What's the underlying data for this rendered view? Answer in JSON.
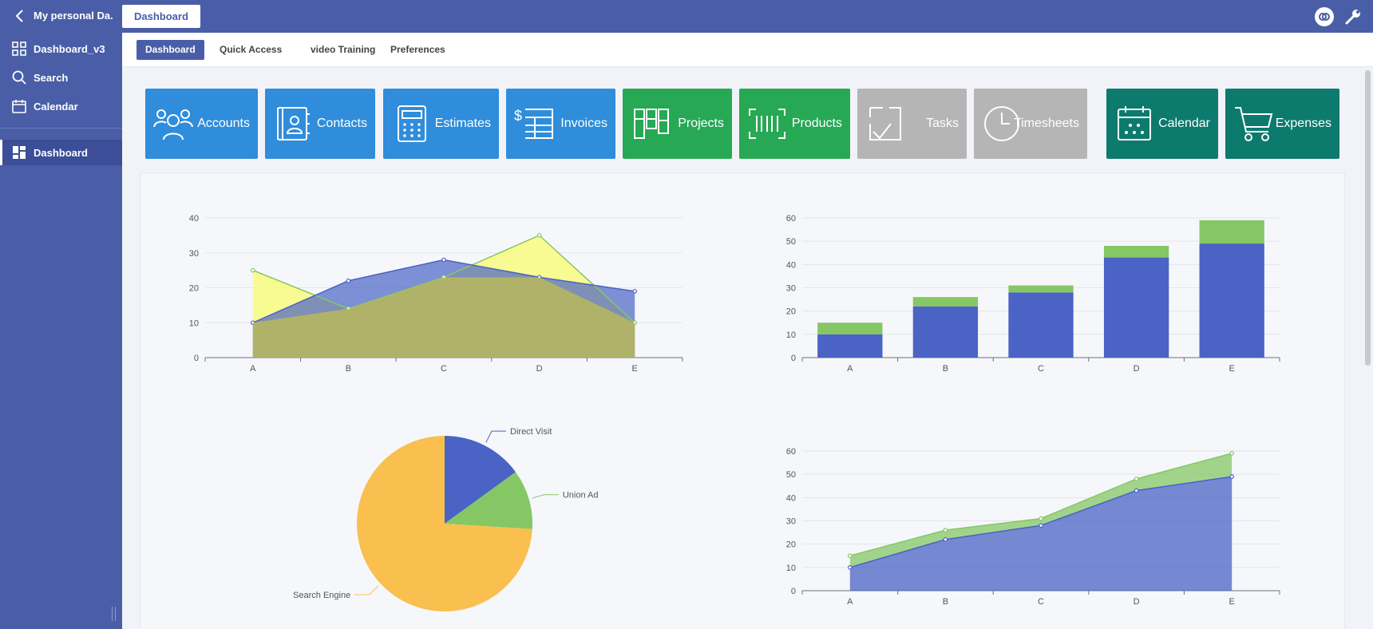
{
  "header": {
    "title": "My personal Da...",
    "active_tab": "Dashboard"
  },
  "sidebar": {
    "items": [
      {
        "label": "Dashboard_v3",
        "icon": "grid-icon"
      },
      {
        "label": "Search",
        "icon": "search-icon"
      },
      {
        "label": "Calendar",
        "icon": "calendar-icon"
      },
      {
        "label": "Dashboard",
        "icon": "dashboard-icon",
        "active": true
      }
    ]
  },
  "subnav": {
    "tabs": [
      "Dashboard",
      "Quick Access",
      "video Training",
      "Preferences"
    ],
    "active": "Dashboard"
  },
  "tiles": [
    {
      "label": "Accounts",
      "icon": "users-icon",
      "color": "#2f8ddb"
    },
    {
      "label": "Contacts",
      "icon": "contact-book-icon",
      "color": "#2f8ddb"
    },
    {
      "label": "Estimates",
      "icon": "calculator-icon",
      "color": "#2f8ddb"
    },
    {
      "label": "Invoices",
      "icon": "invoice-icon",
      "color": "#2f8ddb"
    },
    {
      "label": "Projects",
      "icon": "kanban-icon",
      "color": "#27a855"
    },
    {
      "label": "Products",
      "icon": "barcode-icon",
      "color": "#27a855"
    },
    {
      "label": "Tasks",
      "icon": "checkbox-icon",
      "color": "#b5b5b5"
    },
    {
      "label": "Timesheets",
      "icon": "clock-icon",
      "color": "#b5b5b5"
    },
    {
      "label": "Calendar",
      "icon": "calendar-icon",
      "color": "#0d7a6e"
    },
    {
      "label": "Expenses",
      "icon": "cart-icon",
      "color": "#0d7a6e"
    }
  ],
  "colors": {
    "brand": "#4a5ea8",
    "series_blue": "#4a63c4",
    "series_green": "#86c765",
    "series_yellow": "#f8fc6f",
    "pie_orange": "#f9c04f"
  },
  "chart_data": [
    {
      "type": "area",
      "categories": [
        "A",
        "B",
        "C",
        "D",
        "E"
      ],
      "series": [
        {
          "values": [
            10,
            22,
            28,
            23,
            19
          ]
        },
        {
          "values": [
            25,
            14,
            23,
            35,
            10
          ]
        }
      ],
      "ylim": [
        0,
        40
      ],
      "yticks": [
        0,
        10,
        20,
        30,
        40
      ],
      "grid": true
    },
    {
      "type": "bar",
      "stacked": true,
      "categories": [
        "A",
        "B",
        "C",
        "D",
        "E"
      ],
      "series": [
        {
          "values": [
            10,
            22,
            28,
            43,
            49
          ]
        },
        {
          "values": [
            5,
            4,
            3,
            5,
            10
          ]
        }
      ],
      "ylim": [
        0,
        60
      ],
      "yticks": [
        0,
        10,
        20,
        30,
        40,
        50,
        60
      ],
      "grid": true
    },
    {
      "type": "pie",
      "slices": [
        {
          "label": "Direct Visit",
          "value": 15
        },
        {
          "label": "Union Ad",
          "value": 11
        },
        {
          "label": "Search Engine",
          "value": 74
        }
      ]
    },
    {
      "type": "area",
      "stacked": true,
      "categories": [
        "A",
        "B",
        "C",
        "D",
        "E"
      ],
      "series": [
        {
          "values": [
            10,
            22,
            28,
            43,
            49
          ]
        },
        {
          "values": [
            5,
            4,
            3,
            5,
            10
          ]
        }
      ],
      "ylim": [
        0,
        60
      ],
      "yticks": [
        0,
        10,
        20,
        30,
        40,
        50,
        60
      ],
      "grid": true
    }
  ]
}
